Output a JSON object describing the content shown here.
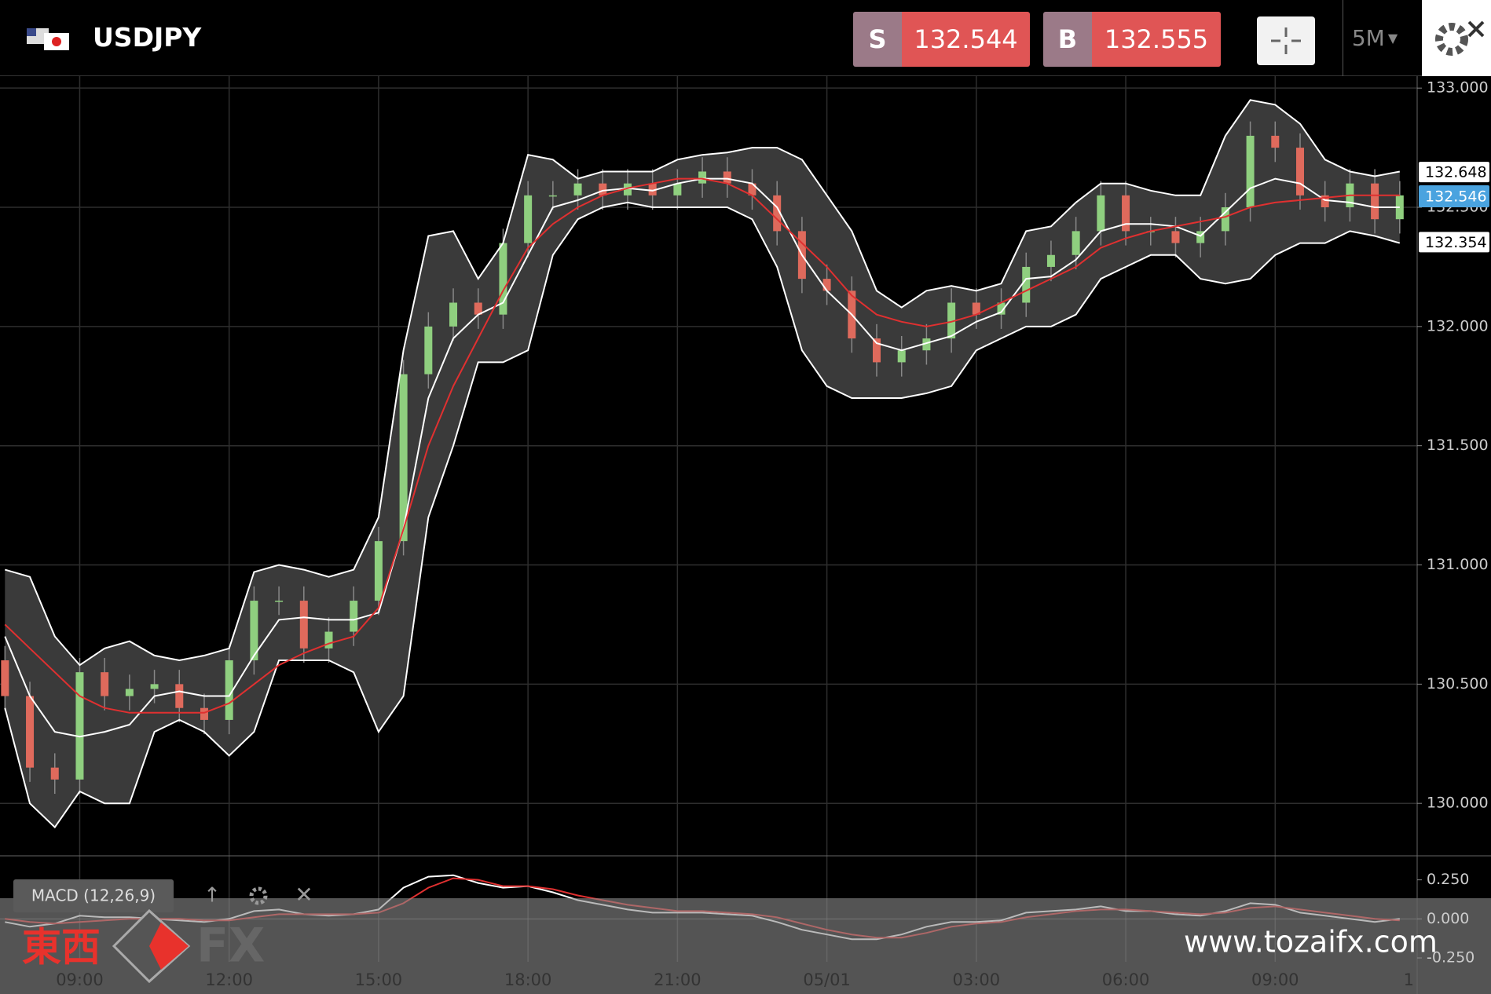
{
  "header": {
    "symbol": "USDJPY",
    "sell": {
      "side": "S",
      "price": "132.544"
    },
    "buy": {
      "side": "B",
      "price": "132.555"
    },
    "timeframe": "5M"
  },
  "watermark": {
    "brand": "東西",
    "brand_suffix": "FX",
    "url": "www.tozaifx.com"
  },
  "chart_data": [
    {
      "type": "candlestick",
      "up_color": "#8fcf7f",
      "down_color": "#df6a5c",
      "band_fill": "#3a3a3a",
      "grid": true,
      "xlim": [
        -0.2,
        56.7
      ],
      "ylim": [
        129.78,
        133.05
      ],
      "xticks": [
        {
          "value": 3,
          "label": "09:00"
        },
        {
          "value": 9,
          "label": "12:00"
        },
        {
          "value": 15,
          "label": "15:00"
        },
        {
          "value": 21,
          "label": "18:00"
        },
        {
          "value": 27,
          "label": "21:00"
        },
        {
          "value": 33,
          "label": "05/01"
        },
        {
          "value": 39,
          "label": "03:00"
        },
        {
          "value": 45,
          "label": "06:00"
        },
        {
          "value": 51,
          "label": "09:00"
        },
        {
          "value": 57,
          "label": "1"
        }
      ],
      "yticks": [
        {
          "value": 130,
          "label": "130.000"
        },
        {
          "value": 130.5,
          "label": "130.500"
        },
        {
          "value": 131,
          "label": "131.000"
        },
        {
          "value": 131.5,
          "label": "131.500"
        },
        {
          "value": 132,
          "label": "132.000"
        },
        {
          "value": 132.5,
          "label": "132.500"
        },
        {
          "value": 133,
          "label": "133.000"
        }
      ],
      "current_price": 132.546,
      "current_color": "#4aa3df",
      "band_tags": [
        132.648,
        132.354
      ],
      "open": [
        130.6,
        130.45,
        130.15,
        130.1,
        130.55,
        130.45,
        130.48,
        130.5,
        130.4,
        130.35,
        130.6,
        130.85,
        130.85,
        130.65,
        130.72,
        130.85,
        131.1,
        131.8,
        132.0,
        132.1,
        132.05,
        132.35,
        132.55,
        132.55,
        132.6,
        132.55,
        132.6,
        132.55,
        132.6,
        132.65,
        132.6,
        132.55,
        132.4,
        132.2,
        132.15,
        131.95,
        131.85,
        131.9,
        131.95,
        132.1,
        132.05,
        132.1,
        132.25,
        132.3,
        132.4,
        132.55,
        132.4,
        132.4,
        132.35,
        132.4,
        132.5,
        132.8,
        132.75,
        132.55,
        132.5,
        132.6,
        132.45
      ],
      "high": [
        130.66,
        130.51,
        130.21,
        130.61,
        130.61,
        130.54,
        130.56,
        130.56,
        130.46,
        130.66,
        130.91,
        130.91,
        130.91,
        130.78,
        130.91,
        131.16,
        131.86,
        132.06,
        132.16,
        132.16,
        132.41,
        132.61,
        132.61,
        132.66,
        132.66,
        132.66,
        132.66,
        132.66,
        132.71,
        132.71,
        132.66,
        132.61,
        132.46,
        132.26,
        132.21,
        132.01,
        131.96,
        132.01,
        132.16,
        132.16,
        132.16,
        132.31,
        132.36,
        132.46,
        132.61,
        132.61,
        132.46,
        132.46,
        132.46,
        132.56,
        132.86,
        132.86,
        132.81,
        132.61,
        132.66,
        132.66,
        132.61
      ],
      "low": [
        130.39,
        130.09,
        130.04,
        130.04,
        130.39,
        130.39,
        130.42,
        130.34,
        130.29,
        130.29,
        130.54,
        130.79,
        130.59,
        130.59,
        130.66,
        130.79,
        131.04,
        131.74,
        131.94,
        131.99,
        131.99,
        132.29,
        132.49,
        132.49,
        132.49,
        132.49,
        132.49,
        132.49,
        132.54,
        132.54,
        132.49,
        132.34,
        132.14,
        132.09,
        131.89,
        131.79,
        131.79,
        131.84,
        131.89,
        131.99,
        131.99,
        132.04,
        132.19,
        132.24,
        132.34,
        132.34,
        132.34,
        132.29,
        132.29,
        132.34,
        132.44,
        132.69,
        132.49,
        132.44,
        132.44,
        132.39,
        132.39
      ],
      "close": [
        130.45,
        130.15,
        130.1,
        130.55,
        130.45,
        130.48,
        130.5,
        130.4,
        130.35,
        130.6,
        130.85,
        130.85,
        130.65,
        130.72,
        130.85,
        131.1,
        131.8,
        132.0,
        132.1,
        132.05,
        132.35,
        132.55,
        132.55,
        132.6,
        132.55,
        132.6,
        132.55,
        132.6,
        132.65,
        132.6,
        132.55,
        132.4,
        132.2,
        132.15,
        131.95,
        131.85,
        131.9,
        131.95,
        132.1,
        132.05,
        132.1,
        132.25,
        132.3,
        132.4,
        132.55,
        132.4,
        132.4,
        132.35,
        132.4,
        132.5,
        132.8,
        132.75,
        132.55,
        132.5,
        132.6,
        132.45,
        132.55
      ],
      "series": [
        {
          "color": "#ffffff",
          "values": [
            130.98,
            130.95,
            130.7,
            130.58,
            130.65,
            130.68,
            130.62,
            130.6,
            130.62,
            130.65,
            130.97,
            131.0,
            130.98,
            130.95,
            130.98,
            131.2,
            131.9,
            132.38,
            132.4,
            132.2,
            132.35,
            132.72,
            132.7,
            132.62,
            132.65,
            132.65,
            132.65,
            132.7,
            132.72,
            132.73,
            132.75,
            132.75,
            132.7,
            132.55,
            132.4,
            132.15,
            132.08,
            132.15,
            132.17,
            132.15,
            132.18,
            132.4,
            132.42,
            132.52,
            132.6,
            132.6,
            132.57,
            132.55,
            132.55,
            132.8,
            132.95,
            132.93,
            132.85,
            132.7,
            132.65,
            132.63,
            132.65
          ]
        },
        {
          "color": "#ffffff",
          "values": [
            130.7,
            130.45,
            130.3,
            130.28,
            130.3,
            130.33,
            130.45,
            130.47,
            130.45,
            130.45,
            130.62,
            130.77,
            130.78,
            130.77,
            130.77,
            130.8,
            131.15,
            131.7,
            131.95,
            132.05,
            132.1,
            132.3,
            132.5,
            132.53,
            132.57,
            132.58,
            132.57,
            132.6,
            132.62,
            132.62,
            132.6,
            132.5,
            132.3,
            132.15,
            132.05,
            131.93,
            131.9,
            131.93,
            131.96,
            132.02,
            132.06,
            132.2,
            132.21,
            132.28,
            132.4,
            132.43,
            132.43,
            132.42,
            132.38,
            132.48,
            132.58,
            132.62,
            132.6,
            132.53,
            132.52,
            132.5,
            132.5
          ]
        },
        {
          "color": "#ffffff",
          "values": [
            130.4,
            130.0,
            129.9,
            130.05,
            130.0,
            130.0,
            130.3,
            130.35,
            130.3,
            130.2,
            130.3,
            130.6,
            130.6,
            130.6,
            130.55,
            130.3,
            130.45,
            131.2,
            131.5,
            131.85,
            131.85,
            131.9,
            132.3,
            132.45,
            132.5,
            132.52,
            132.5,
            132.5,
            132.5,
            132.5,
            132.45,
            132.25,
            131.9,
            131.75,
            131.7,
            131.7,
            131.7,
            131.72,
            131.75,
            131.9,
            131.95,
            132.0,
            132.0,
            132.05,
            132.2,
            132.25,
            132.3,
            132.3,
            132.2,
            132.18,
            132.2,
            132.3,
            132.35,
            132.35,
            132.4,
            132.38,
            132.35
          ]
        },
        {
          "color": "#e03030",
          "values": [
            130.75,
            130.65,
            130.55,
            130.45,
            130.4,
            130.38,
            130.38,
            130.38,
            130.38,
            130.42,
            130.5,
            130.58,
            130.63,
            130.67,
            130.7,
            130.82,
            131.15,
            131.5,
            131.75,
            131.95,
            132.15,
            132.33,
            132.43,
            132.5,
            132.55,
            132.58,
            132.6,
            132.62,
            132.62,
            132.6,
            132.55,
            132.45,
            132.35,
            132.25,
            132.13,
            132.05,
            132.02,
            132.0,
            132.02,
            132.05,
            132.1,
            132.15,
            132.2,
            132.25,
            132.33,
            132.37,
            132.4,
            132.42,
            132.44,
            132.46,
            132.5,
            132.52,
            132.53,
            132.54,
            132.55,
            132.55,
            132.55
          ]
        }
      ]
    },
    {
      "type": "line",
      "title": "MACD (12,26,9)",
      "ylim": [
        -0.275,
        0.404
      ],
      "yticks": [
        {
          "value": 0.25,
          "label": "0.250"
        },
        {
          "value": 0,
          "label": "0.000"
        },
        {
          "value": -0.25,
          "label": "-0.250"
        }
      ],
      "series": [
        {
          "color": "#ffffff",
          "values": [
            -0.02,
            -0.05,
            -0.03,
            0.02,
            0.01,
            0.01,
            0.0,
            -0.01,
            -0.02,
            0.0,
            0.05,
            0.06,
            0.03,
            0.02,
            0.03,
            0.06,
            0.2,
            0.27,
            0.28,
            0.23,
            0.2,
            0.21,
            0.17,
            0.12,
            0.09,
            0.06,
            0.04,
            0.04,
            0.04,
            0.03,
            0.02,
            -0.02,
            -0.07,
            -0.1,
            -0.13,
            -0.13,
            -0.1,
            -0.05,
            -0.02,
            -0.02,
            -0.01,
            0.04,
            0.05,
            0.06,
            0.08,
            0.05,
            0.05,
            0.03,
            0.02,
            0.05,
            0.1,
            0.09,
            0.04,
            0.02,
            0.0,
            -0.02,
            0.0
          ]
        },
        {
          "color": "#e03030",
          "values": [
            0.0,
            -0.02,
            -0.03,
            -0.02,
            -0.01,
            0.0,
            0.0,
            0.0,
            -0.01,
            -0.01,
            0.01,
            0.03,
            0.03,
            0.03,
            0.03,
            0.04,
            0.1,
            0.2,
            0.26,
            0.25,
            0.21,
            0.21,
            0.19,
            0.15,
            0.12,
            0.09,
            0.07,
            0.05,
            0.05,
            0.04,
            0.03,
            0.01,
            -0.03,
            -0.07,
            -0.1,
            -0.12,
            -0.12,
            -0.09,
            -0.05,
            -0.03,
            -0.02,
            0.01,
            0.03,
            0.05,
            0.06,
            0.06,
            0.05,
            0.04,
            0.03,
            0.04,
            0.07,
            0.08,
            0.06,
            0.04,
            0.02,
            0.0,
            -0.01
          ]
        }
      ]
    }
  ]
}
